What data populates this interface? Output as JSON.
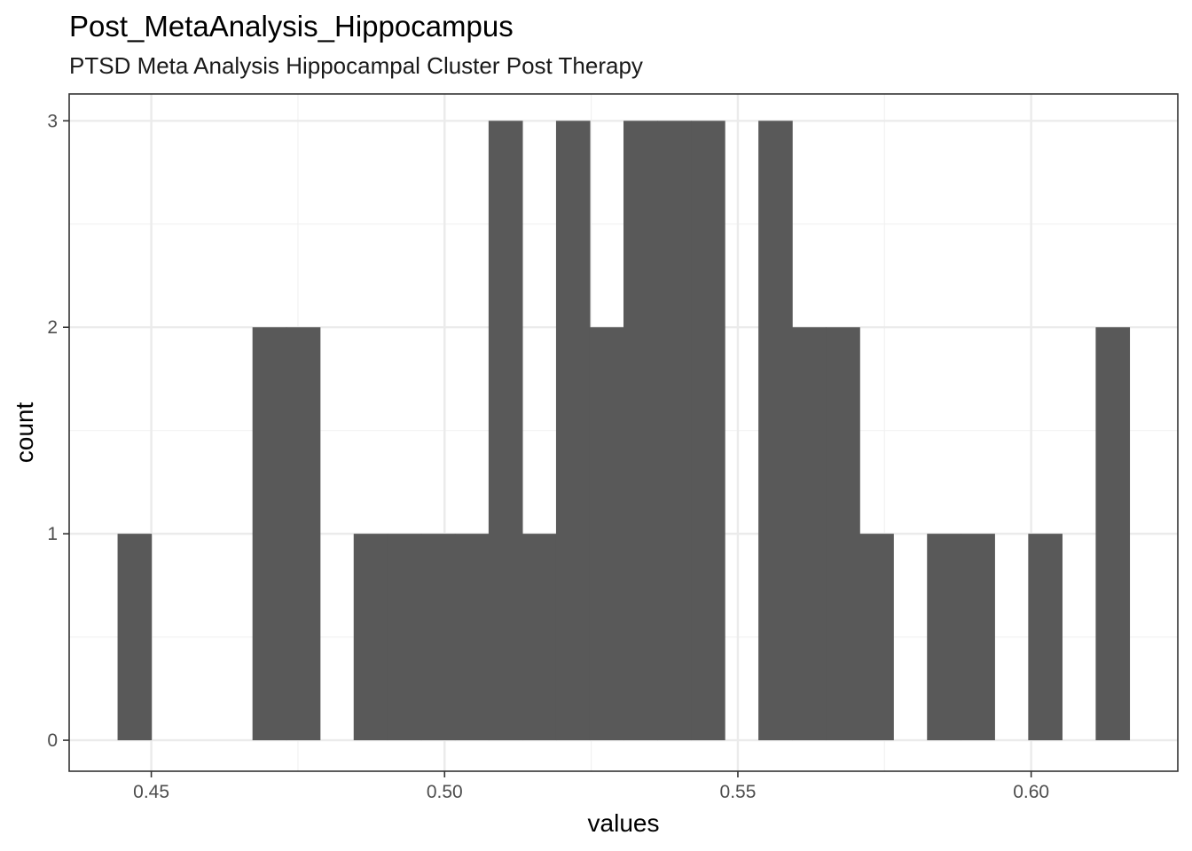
{
  "chart_data": {
    "type": "bar",
    "title": "Post_MetaAnalysis_Hippocampus",
    "subtitle": "PTSD Meta Analysis Hippocampal Cluster Post Therapy",
    "xlabel": "values",
    "ylabel": "count",
    "xlim": [
      0.436,
      0.625
    ],
    "ylim": [
      -0.15,
      3.13
    ],
    "x_ticks": [
      0.45,
      0.5,
      0.55,
      0.6
    ],
    "x_tick_labels": [
      "0.45",
      "0.50",
      "0.55",
      "0.60"
    ],
    "y_ticks": [
      0,
      1,
      2,
      3
    ],
    "y_tick_labels": [
      "0",
      "1",
      "2",
      "3"
    ],
    "grid": true,
    "bar_color": "#595959",
    "bin_width": 0.00575,
    "bins": [
      {
        "start": 0.44425,
        "count": 1
      },
      {
        "start": 0.45,
        "count": 0
      },
      {
        "start": 0.45575,
        "count": 0
      },
      {
        "start": 0.4615,
        "count": 0
      },
      {
        "start": 0.46725,
        "count": 2
      },
      {
        "start": 0.473,
        "count": 2
      },
      {
        "start": 0.47875,
        "count": 0
      },
      {
        "start": 0.4845,
        "count": 1
      },
      {
        "start": 0.49025,
        "count": 1
      },
      {
        "start": 0.496,
        "count": 1
      },
      {
        "start": 0.50175,
        "count": 1
      },
      {
        "start": 0.5075,
        "count": 3
      },
      {
        "start": 0.51325,
        "count": 1
      },
      {
        "start": 0.519,
        "count": 3
      },
      {
        "start": 0.52475,
        "count": 2
      },
      {
        "start": 0.5305,
        "count": 3
      },
      {
        "start": 0.53625,
        "count": 3
      },
      {
        "start": 0.542,
        "count": 3
      },
      {
        "start": 0.54775,
        "count": 0
      },
      {
        "start": 0.5535,
        "count": 3
      },
      {
        "start": 0.55925,
        "count": 2
      },
      {
        "start": 0.565,
        "count": 2
      },
      {
        "start": 0.57075,
        "count": 1
      },
      {
        "start": 0.5765,
        "count": 0
      },
      {
        "start": 0.58225,
        "count": 1
      },
      {
        "start": 0.588,
        "count": 1
      },
      {
        "start": 0.59375,
        "count": 0
      },
      {
        "start": 0.5995,
        "count": 1
      },
      {
        "start": 0.60525,
        "count": 0
      },
      {
        "start": 0.611,
        "count": 2
      }
    ]
  }
}
